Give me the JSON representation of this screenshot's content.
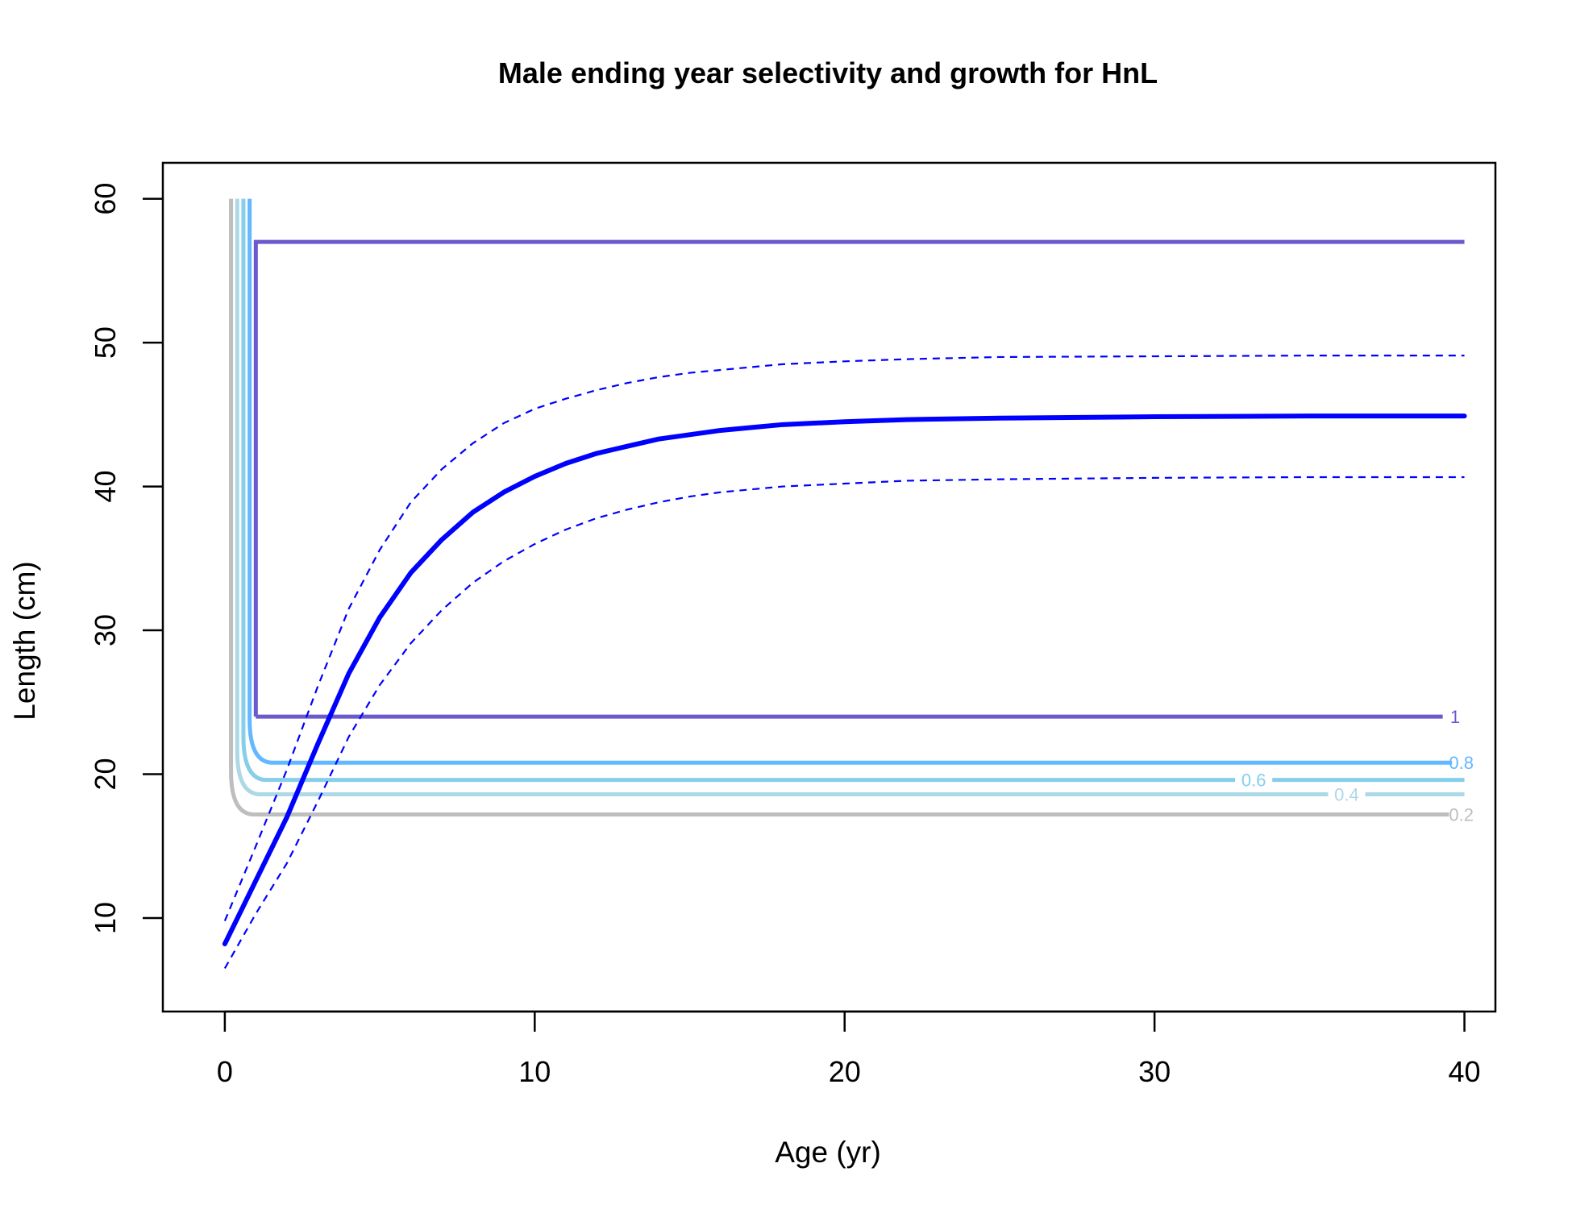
{
  "chart_data": {
    "type": "line",
    "title": "Male ending year selectivity and growth for HnL",
    "xlabel": "Age (yr)",
    "ylabel": "Length (cm)",
    "xlim": [
      -2,
      41
    ],
    "ylim": [
      3.5,
      62.5
    ],
    "xticks": [
      0,
      10,
      20,
      30,
      40
    ],
    "yticks": [
      10,
      20,
      30,
      40,
      50,
      60
    ],
    "grid": false,
    "growth": {
      "color": "#0000FF",
      "ages": [
        0,
        1,
        2,
        3,
        4,
        5,
        6,
        7,
        8,
        9,
        10,
        11,
        12,
        13,
        14,
        15,
        16,
        17,
        18,
        19,
        20,
        22,
        25,
        30,
        35,
        40
      ],
      "mean": [
        8.2,
        12.6,
        17.0,
        22.1,
        27.0,
        30.9,
        34.0,
        36.3,
        38.2,
        39.6,
        40.7,
        41.6,
        42.3,
        42.8,
        43.3,
        43.6,
        43.9,
        44.1,
        44.3,
        44.4,
        44.5,
        44.65,
        44.75,
        44.85,
        44.9,
        44.9
      ],
      "upper": [
        9.8,
        15.0,
        20.3,
        26.1,
        31.5,
        35.6,
        38.9,
        41.2,
        43.0,
        44.4,
        45.4,
        46.1,
        46.7,
        47.2,
        47.6,
        47.9,
        48.1,
        48.3,
        48.5,
        48.6,
        48.7,
        48.85,
        49.0,
        49.05,
        49.1,
        49.1
      ],
      "lower": [
        6.5,
        10.3,
        13.8,
        18.1,
        22.6,
        26.2,
        29.1,
        31.4,
        33.3,
        34.8,
        36.0,
        37.0,
        37.8,
        38.4,
        38.9,
        39.3,
        39.6,
        39.8,
        40.0,
        40.1,
        40.2,
        40.4,
        40.5,
        40.6,
        40.65,
        40.65
      ]
    },
    "selectivity_contours": [
      {
        "level": "0.2",
        "color": "#BEBEBE",
        "x_min": 0.2,
        "floor": 17.2,
        "x_end": 39.5,
        "label_x": 39.9,
        "gap": null
      },
      {
        "level": "0.4",
        "color": "#ADD8E6",
        "x_min": 0.4,
        "floor": 18.6,
        "x_end": 40,
        "label_x": 36.2,
        "gap": [
          35.6,
          36.8
        ]
      },
      {
        "level": "0.6",
        "color": "#87CEEB",
        "x_min": 0.6,
        "floor": 19.6,
        "x_end": 40,
        "label_x": 33.2,
        "gap": [
          32.6,
          33.8
        ]
      },
      {
        "level": "0.8",
        "color": "#63B8FF",
        "x_min": 0.8,
        "floor": 20.8,
        "x_end": 39.6,
        "label_x": 39.9,
        "gap": null
      }
    ],
    "selectivity_box": {
      "level": "1",
      "color": "#6A5ACD",
      "x_start": 1.0,
      "x_end": 40,
      "low": 24.0,
      "high": 57.0,
      "x_bottom_end": 39.3,
      "label_x": 39.7
    }
  }
}
